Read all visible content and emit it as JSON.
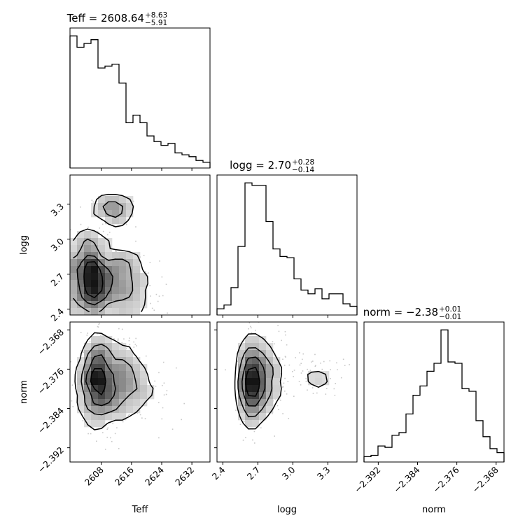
{
  "chart_data": {
    "type": "corner",
    "parameters": [
      "Teff",
      "logg",
      "norm"
    ],
    "titles": [
      {
        "param": "Teff",
        "prefix": "Teff = 2608.64",
        "upper": "+8.63",
        "lower": "−5.91"
      },
      {
        "param": "logg",
        "prefix": "logg = 2.70",
        "upper": "+0.28",
        "lower": "−0.14"
      },
      {
        "param": "norm",
        "prefix": "norm = −2.38",
        "upper": "+0.01",
        "lower": "−0.01"
      }
    ],
    "axis_labels": {
      "Teff": "Teff",
      "logg": "logg",
      "norm": "norm"
    },
    "ranges": {
      "Teff": [
        2599.7,
        2636.8
      ],
      "logg": [
        2.35,
        3.55
      ],
      "norm": [
        -2.3949,
        -2.3664
      ]
    },
    "ticks": {
      "Teff": {
        "values": [
          2608,
          2616,
          2624,
          2632
        ],
        "labels": [
          "2608",
          "2616",
          "2624",
          "2632"
        ]
      },
      "logg": {
        "values": [
          2.4,
          2.7,
          3.0,
          3.3
        ],
        "labels": [
          "2.4",
          "2.7",
          "3.0",
          "3.3"
        ]
      },
      "norm": {
        "values": [
          -2.392,
          -2.384,
          -2.376,
          -2.368
        ],
        "labels": [
          "−2.392",
          "−2.384",
          "−2.376",
          "−2.368"
        ]
      }
    },
    "histograms": {
      "Teff": {
        "bin_edges": [
          2599.7,
          2601.555,
          2603.41,
          2605.265,
          2607.12,
          2608.975,
          2610.83,
          2612.685,
          2614.54,
          2616.395,
          2618.25,
          2620.105,
          2621.96,
          2623.815,
          2625.67,
          2627.525,
          2629.38,
          2631.235,
          2633.09,
          2634.945,
          2636.8
        ],
        "counts": [
          70,
          64,
          66,
          68,
          53,
          54,
          55,
          45,
          24,
          28,
          24,
          17,
          14,
          12,
          13,
          8,
          7,
          6,
          4,
          3
        ]
      },
      "logg": {
        "bin_edges": [
          2.35,
          2.41,
          2.47,
          2.53,
          2.59,
          2.65,
          2.71,
          2.77,
          2.83,
          2.89,
          2.95,
          3.01,
          3.07,
          3.13,
          3.19,
          3.25,
          3.31,
          3.37,
          3.43,
          3.49,
          3.55
        ],
        "counts": [
          5,
          8,
          22,
          55,
          106,
          104,
          104,
          75,
          53,
          47,
          46,
          29,
          20,
          17,
          21,
          13,
          17,
          17,
          9,
          7
        ]
      },
      "norm": {
        "bin_edges": [
          -2.3949,
          -2.393475,
          -2.39205,
          -2.390625,
          -2.3892,
          -2.387775,
          -2.38635,
          -2.384925,
          -2.3835,
          -2.382075,
          -2.38065,
          -2.379225,
          -2.3778,
          -2.376375,
          -2.37495,
          -2.373525,
          -2.3721,
          -2.370675,
          -2.36925,
          -2.367825,
          -2.3664
        ],
        "counts": [
          4,
          5,
          12,
          11,
          20,
          22,
          36,
          50,
          57,
          68,
          74,
          99,
          75,
          74,
          55,
          53,
          31,
          19,
          10,
          7
        ]
      }
    },
    "contour_levels": 4,
    "grid": false,
    "legend": "none"
  }
}
